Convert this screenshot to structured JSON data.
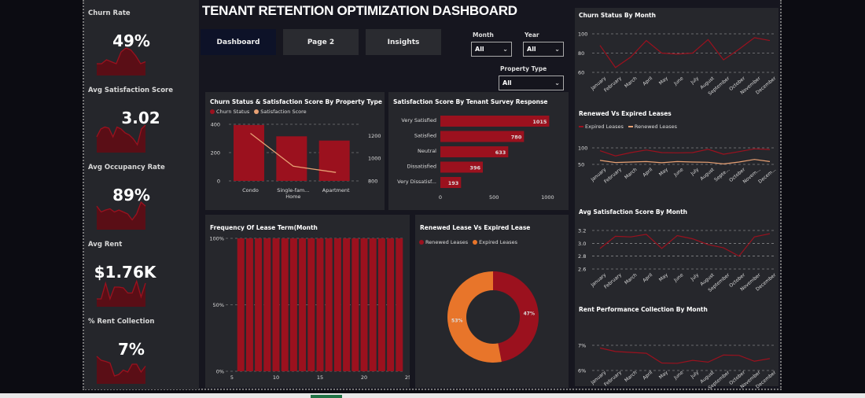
{
  "header": {
    "title": "TENANT RETENTION OPTIMIZATION DASHBOARD"
  },
  "nav": {
    "dashboard": "Dashboard",
    "page2": "Page 2",
    "insights": "Insights",
    "active": "Dashboard"
  },
  "filters": {
    "month": {
      "label": "Month",
      "value": "All"
    },
    "year": {
      "label": "Year",
      "value": "All"
    },
    "property_type": {
      "label": "Property Type",
      "value": "All"
    }
  },
  "kpis": [
    {
      "label": "Churn Rate",
      "value": "49%",
      "trend": [
        3,
        3,
        4,
        3.5,
        3,
        6,
        7,
        6.5,
        5,
        3,
        3.5
      ]
    },
    {
      "label": "Avg Satisfaction Score",
      "value": "3.02",
      "trend": [
        4,
        6,
        6.5,
        6.2,
        4,
        6.5,
        6,
        5,
        4.5,
        3.5,
        2,
        6,
        7
      ]
    },
    {
      "label": "Avg Occupancy Rate",
      "value": "89%",
      "trend": [
        6,
        4.5,
        5,
        5.3,
        4.5,
        5,
        4.5,
        4,
        2.5,
        4,
        7,
        6
      ]
    },
    {
      "label": "Avg Rent",
      "value": "$1.76K",
      "trend": [
        2,
        2,
        6,
        2,
        5,
        5,
        4.8,
        3.5,
        3.5,
        6.5,
        2.5,
        6
      ]
    },
    {
      "label": "% Rent Collection",
      "value": "7%",
      "trend": [
        7,
        6,
        5.7,
        5.3,
        2,
        2.4,
        3.5,
        3,
        5,
        5,
        3,
        4.5
      ]
    }
  ],
  "chart_data": [
    {
      "id": "churn_satisfaction_by_property",
      "type": "bar",
      "title": "Churn Status & Satisfaction Score By Property Type",
      "categories": [
        "Condo",
        "Single-fam... Home",
        "Apartment"
      ],
      "series": [
        {
          "name": "Churn Status",
          "values": [
            395,
            315,
            285
          ],
          "axis": "left",
          "color": "#9b111e"
        },
        {
          "name": "Satisfaction Score",
          "values": [
            1220,
            930,
            875
          ],
          "axis": "right",
          "type": "line",
          "color": "#e8a174"
        }
      ],
      "ylim_left": [
        0,
        400
      ],
      "yticks_left": [
        0,
        200,
        400
      ],
      "ylim_right": [
        800,
        1300
      ],
      "yticks_right": [
        800,
        1000,
        1200
      ]
    },
    {
      "id": "satisfaction_by_survey",
      "type": "bar",
      "orientation": "horizontal",
      "title": "Satisfaction Score By Tenant Survey Response",
      "categories": [
        "Very Satisfied",
        "Satisfied",
        "Neutral",
        "Dissatisfied",
        "Very Dissatisf..."
      ],
      "values": [
        1015,
        780,
        633,
        396,
        193
      ],
      "xlim": [
        0,
        1100
      ],
      "xticks": [
        0,
        500,
        1000
      ]
    },
    {
      "id": "lease_term_frequency",
      "type": "bar",
      "title": "Frequency Of Lease Term(Month",
      "x": [
        6,
        7,
        8,
        9,
        10,
        11,
        12,
        13,
        14,
        15,
        16,
        17,
        18,
        19,
        20,
        21,
        22,
        23,
        24
      ],
      "values": [
        100,
        100,
        100,
        100,
        100,
        100,
        100,
        100,
        100,
        100,
        100,
        100,
        100,
        100,
        100,
        100,
        100,
        100,
        100
      ],
      "ylim": [
        0,
        100
      ],
      "yticks": [
        "0%",
        "50%",
        "100%"
      ],
      "xticks": [
        5,
        10,
        15,
        20,
        25
      ]
    },
    {
      "id": "renewed_vs_expired_donut",
      "type": "pie",
      "title": "Renewed Lease Vs Expired Lease",
      "labels": [
        "Renewed Leases",
        "Expired Leases"
      ],
      "values": [
        47,
        53
      ],
      "value_labels": [
        "47%",
        "53%"
      ],
      "colors": [
        "#9b111e",
        "#e8752a"
      ]
    },
    {
      "id": "churn_by_month",
      "type": "line",
      "title": "Churn Status By Month",
      "categories": [
        "January",
        "February",
        "March",
        "April",
        "May",
        "June",
        "July",
        "August",
        "September",
        "October",
        "November",
        "December"
      ],
      "series": [
        {
          "name": "Churn Status",
          "values": [
            88,
            65,
            76,
            93,
            80,
            79,
            80,
            94,
            73,
            84,
            96,
            93
          ],
          "color": "#9b111e"
        }
      ],
      "ylim": [
        60,
        100
      ],
      "yticks": [
        "60",
        "80",
        "100"
      ]
    },
    {
      "id": "renewed_vs_expired_by_month",
      "type": "line",
      "title": "Renewed Vs Expired Leases",
      "categories": [
        "January",
        "February",
        "March",
        "April",
        "May",
        "June",
        "July",
        "August",
        "Septe...",
        "October",
        "Novem...",
        "Decem..."
      ],
      "series": [
        {
          "name": "Expired Leases",
          "values": [
            88,
            66,
            80,
            91,
            80,
            79,
            80,
            94,
            73,
            84,
            96,
            93
          ],
          "color": "#9b111e"
        },
        {
          "name": "Renewed Leases",
          "values": [
            47,
            38,
            40,
            42,
            37,
            42,
            40,
            39,
            32,
            40,
            51,
            42
          ],
          "color": "#e8a174"
        }
      ],
      "ylim": [
        30,
        100
      ],
      "yticks": [
        "50",
        "100"
      ]
    },
    {
      "id": "avg_satisfaction_by_month",
      "type": "line",
      "title": "Avg Satisfaction Score By Month",
      "categories": [
        "January",
        "February",
        "March",
        "April",
        "May",
        "June",
        "July",
        "August",
        "September",
        "October",
        "November",
        "December"
      ],
      "series": [
        {
          "name": "Avg Satisfaction Score",
          "values": [
            2.92,
            3.11,
            3.1,
            3.14,
            2.92,
            3.12,
            3.07,
            2.98,
            2.93,
            2.8,
            3.1,
            3.15
          ],
          "color": "#9b111e"
        }
      ],
      "ylim": [
        2.6,
        3.2
      ],
      "yticks": [
        "2.6",
        "2.8",
        "3.0",
        "3.2"
      ]
    },
    {
      "id": "rent_collection_by_month",
      "type": "line",
      "title": "Rent Performance Collection By Month",
      "categories": [
        "January",
        "February",
        "March",
        "April",
        "May",
        "June",
        "July",
        "August",
        "September",
        "October",
        "November",
        "December"
      ],
      "series": [
        {
          "name": "Rent Collection",
          "values": [
            7.05,
            6.85,
            6.8,
            6.75,
            6.2,
            6.18,
            6.35,
            6.25,
            6.65,
            6.63,
            6.3,
            6.45
          ],
          "color": "#9b111e"
        }
      ],
      "ylim": [
        6,
        7.2
      ],
      "yticks": [
        "6%",
        "7%"
      ]
    }
  ]
}
